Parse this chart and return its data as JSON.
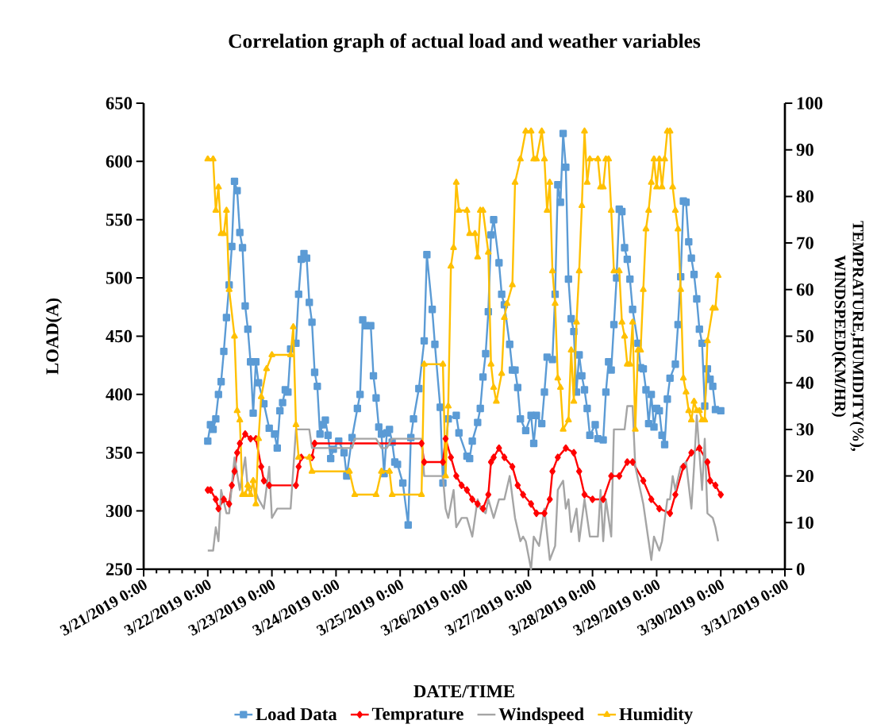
{
  "chart_data": {
    "type": "line",
    "title": "Correlation graph of actual load and weather variables",
    "xlabel": "DATE/TIME",
    "ylabel": "LOAD(A)",
    "y2label": "TEMPRATURE,HUMIDITY(%), WINDSPEED(KM/HR)",
    "legend": "bottom",
    "xlim": [
      "2019-03-21",
      "2019-03-31"
    ],
    "xticks": [
      {
        "value": "2019-03-21",
        "label": "3/21/2019 0:00"
      },
      {
        "value": "2019-03-22",
        "label": "3/22/2019 0:00"
      },
      {
        "value": "2019-03-23",
        "label": "3/23/2019 0:00"
      },
      {
        "value": "2019-03-24",
        "label": "3/24/2019 0:00"
      },
      {
        "value": "2019-03-25",
        "label": "3/25/2019 0:00"
      },
      {
        "value": "2019-03-26",
        "label": "3/26/2019 0:00"
      },
      {
        "value": "2019-03-27",
        "label": "3/27/2019 0:00"
      },
      {
        "value": "2019-03-28",
        "label": "3/28/2019 0:00"
      },
      {
        "value": "2019-03-29",
        "label": "3/29/2019 0:00"
      },
      {
        "value": "2019-03-30",
        "label": "3/30/2019 0:00"
      },
      {
        "value": "2019-03-31",
        "label": "3/31/2019 0:00"
      }
    ],
    "ylim": [
      250,
      650
    ],
    "yticks": [
      250,
      300,
      350,
      400,
      450,
      500,
      550,
      600,
      650
    ],
    "y2lim": [
      0,
      100
    ],
    "y2ticks": [
      0,
      10,
      20,
      30,
      40,
      50,
      60,
      70,
      80,
      90,
      100
    ],
    "series": [
      {
        "name": "Load Data",
        "color": "#5b9bd5",
        "marker": "square",
        "x": [
          "2019-03-22T00:00",
          "2019-03-22T01:00",
          "2019-03-22T02:00",
          "2019-03-22T03:00",
          "2019-03-22T04:00",
          "2019-03-22T05:00",
          "2019-03-22T06:00",
          "2019-03-22T07:00",
          "2019-03-22T08:00",
          "2019-03-22T09:00",
          "2019-03-22T10:00",
          "2019-03-22T11:00",
          "2019-03-22T12:00",
          "2019-03-22T13:00",
          "2019-03-22T14:00",
          "2019-03-22T15:00",
          "2019-03-22T16:00",
          "2019-03-22T17:00",
          "2019-03-22T18:00",
          "2019-03-22T19:00",
          "2019-03-22T21:00",
          "2019-03-22T23:00",
          "2019-03-23T01:00",
          "2019-03-23T02:00",
          "2019-03-23T03:00",
          "2019-03-23T04:00",
          "2019-03-23T05:00",
          "2019-03-23T06:00",
          "2019-03-23T07:00",
          "2019-03-23T09:00",
          "2019-03-23T10:00",
          "2019-03-23T11:00",
          "2019-03-23T12:00",
          "2019-03-23T13:00",
          "2019-03-23T14:00",
          "2019-03-23T15:00",
          "2019-03-23T16:00",
          "2019-03-23T17:00",
          "2019-03-23T18:00",
          "2019-03-23T19:00",
          "2019-03-23T20:00",
          "2019-03-23T21:00",
          "2019-03-23T22:00",
          "2019-03-23T23:00",
          "2019-03-24T01:00",
          "2019-03-24T03:00",
          "2019-03-24T04:00",
          "2019-03-24T06:00",
          "2019-03-24T08:00",
          "2019-03-24T09:00",
          "2019-03-24T10:00",
          "2019-03-24T11:00",
          "2019-03-24T13:00",
          "2019-03-24T14:00",
          "2019-03-24T15:00",
          "2019-03-24T16:00",
          "2019-03-24T17:00",
          "2019-03-24T18:00",
          "2019-03-24T19:00",
          "2019-03-24T20:00",
          "2019-03-24T21:00",
          "2019-03-24T22:00",
          "2019-03-24T23:00",
          "2019-03-25T01:00",
          "2019-03-25T03:00",
          "2019-03-25T04:00",
          "2019-03-25T05:00",
          "2019-03-25T07:00",
          "2019-03-25T09:00",
          "2019-03-25T10:00",
          "2019-03-25T12:00",
          "2019-03-25T13:00",
          "2019-03-25T15:00",
          "2019-03-25T16:00",
          "2019-03-25T18:00",
          "2019-03-25T21:00",
          "2019-03-25T22:00",
          "2019-03-26T01:00",
          "2019-03-26T02:00",
          "2019-03-26T03:00",
          "2019-03-26T05:00",
          "2019-03-26T06:00",
          "2019-03-26T07:00",
          "2019-03-26T08:00",
          "2019-03-26T09:00",
          "2019-03-26T10:00",
          "2019-03-26T11:00",
          "2019-03-26T13:00",
          "2019-03-26T14:00",
          "2019-03-26T15:00",
          "2019-03-26T17:00",
          "2019-03-26T18:00",
          "2019-03-26T19:00",
          "2019-03-26T20:00",
          "2019-03-26T21:00",
          "2019-03-26T23:00",
          "2019-03-27T01:00",
          "2019-03-27T02:00",
          "2019-03-27T03:00",
          "2019-03-27T05:00",
          "2019-03-27T06:00",
          "2019-03-27T07:00",
          "2019-03-27T09:00",
          "2019-03-27T10:00",
          "2019-03-27T11:00",
          "2019-03-27T12:00",
          "2019-03-27T13:00",
          "2019-03-27T14:00",
          "2019-03-27T15:00",
          "2019-03-27T16:00",
          "2019-03-27T17:00",
          "2019-03-27T18:00",
          "2019-03-27T19:00",
          "2019-03-27T20:00",
          "2019-03-27T21:00",
          "2019-03-27T22:00",
          "2019-03-27T23:00",
          "2019-03-28T01:00",
          "2019-03-28T02:00",
          "2019-03-28T04:00",
          "2019-03-28T05:00",
          "2019-03-28T06:00",
          "2019-03-28T07:00",
          "2019-03-28T08:00",
          "2019-03-28T09:00",
          "2019-03-28T10:00",
          "2019-03-28T11:00",
          "2019-03-28T12:00",
          "2019-03-28T13:00",
          "2019-03-28T14:00",
          "2019-03-28T15:00",
          "2019-03-28T17:00",
          "2019-03-28T18:00",
          "2019-03-28T19:00",
          "2019-03-28T20:00",
          "2019-03-28T21:00",
          "2019-03-28T22:00",
          "2019-03-28T23:00",
          "2019-03-29T00:00",
          "2019-03-29T01:00",
          "2019-03-29T02:00",
          "2019-03-29T03:00",
          "2019-03-29T04:00",
          "2019-03-29T05:00",
          "2019-03-29T07:00",
          "2019-03-29T08:00",
          "2019-03-29T09:00",
          "2019-03-29T10:00",
          "2019-03-29T11:00",
          "2019-03-29T12:00",
          "2019-03-29T13:00",
          "2019-03-29T14:00",
          "2019-03-29T15:00",
          "2019-03-29T16:00",
          "2019-03-29T17:00",
          "2019-03-29T18:00",
          "2019-03-29T19:00",
          "2019-03-29T20:00",
          "2019-03-29T21:00",
          "2019-03-29T22:00",
          "2019-03-30T00:00"
        ],
        "values": [
          360,
          374,
          370,
          379,
          400,
          411,
          437,
          466,
          494,
          527,
          583,
          575,
          539,
          526,
          476,
          456,
          428,
          384,
          428,
          410,
          392,
          371,
          366,
          354,
          386,
          393,
          404,
          402,
          439,
          444,
          486,
          516,
          521,
          517,
          479,
          462,
          419,
          407,
          366,
          374,
          378,
          365,
          345,
          353,
          360,
          350,
          330,
          363,
          388,
          400,
          464,
          459,
          459,
          416,
          397,
          372,
          366,
          332,
          367,
          370,
          359,
          342,
          340,
          324,
          288,
          363,
          379,
          405,
          446,
          520,
          473,
          443,
          389,
          324,
          379,
          382,
          367,
          347,
          345,
          360,
          376,
          388,
          415,
          435,
          471,
          537,
          550,
          513,
          486,
          477,
          443,
          421,
          421,
          406,
          379,
          369,
          382,
          358,
          382,
          375,
          402,
          432,
          430,
          486,
          580,
          565,
          624,
          595,
          499,
          465,
          454,
          402,
          434,
          416,
          404,
          388,
          365,
          374,
          362,
          361,
          402,
          428,
          421,
          460,
          500,
          559,
          557,
          526,
          516,
          499,
          473,
          444,
          423,
          422,
          404,
          375,
          400,
          372,
          388,
          386,
          365,
          357,
          396,
          414,
          426,
          460,
          501,
          566,
          565,
          531,
          517,
          503,
          482,
          456,
          444,
          390,
          422,
          413,
          407,
          387,
          386
        ]
      },
      {
        "name": "Temprature",
        "color": "#ff0000",
        "marker": "diamond",
        "axis": "y2",
        "x": [
          "2019-03-22T00:00",
          "2019-03-22T01:00",
          "2019-03-22T03:00",
          "2019-03-22T04:00",
          "2019-03-22T06:00",
          "2019-03-22T08:00",
          "2019-03-22T09:00",
          "2019-03-22T10:00",
          "2019-03-22T11:00",
          "2019-03-22T12:00",
          "2019-03-22T14:00",
          "2019-03-22T16:00",
          "2019-03-22T18:00",
          "2019-03-22T20:00",
          "2019-03-22T21:00",
          "2019-03-22T23:00",
          "2019-03-23T09:00",
          "2019-03-23T10:00",
          "2019-03-23T11:00",
          "2019-03-23T15:00",
          "2019-03-23T16:00",
          "2019-03-25T08:00",
          "2019-03-25T09:00",
          "2019-03-25T16:00",
          "2019-03-25T17:00",
          "2019-03-25T19:00",
          "2019-03-25T21:00",
          "2019-03-25T23:00",
          "2019-03-26T01:00",
          "2019-03-26T03:00",
          "2019-03-26T05:00",
          "2019-03-26T07:00",
          "2019-03-26T09:00",
          "2019-03-26T10:00",
          "2019-03-26T11:00",
          "2019-03-26T13:00",
          "2019-03-26T15:00",
          "2019-03-26T18:00",
          "2019-03-26T20:00",
          "2019-03-26T22:00",
          "2019-03-27T01:00",
          "2019-03-27T03:00",
          "2019-03-27T06:00",
          "2019-03-27T08:00",
          "2019-03-27T09:00",
          "2019-03-27T11:00",
          "2019-03-27T14:00",
          "2019-03-27T17:00",
          "2019-03-27T19:00",
          "2019-03-27T21:00",
          "2019-03-28T00:00",
          "2019-03-28T04:00",
          "2019-03-28T07:00",
          "2019-03-28T10:00",
          "2019-03-28T13:00",
          "2019-03-28T15:00",
          "2019-03-28T19:00",
          "2019-03-28T22:00",
          "2019-03-29T01:00",
          "2019-03-29T05:00",
          "2019-03-29T07:00",
          "2019-03-29T10:00",
          "2019-03-29T13:00",
          "2019-03-29T16:00",
          "2019-03-29T19:00",
          "2019-03-29T20:00",
          "2019-03-29T22:00",
          "2019-03-30T00:00"
        ],
        "values": [
          17,
          17,
          15,
          13,
          15,
          14,
          18,
          21,
          25,
          27,
          29,
          28,
          28,
          22,
          19,
          18,
          18,
          22,
          24,
          24,
          27,
          27,
          23,
          23,
          28,
          24,
          20,
          18,
          17,
          15,
          14,
          13,
          16,
          23,
          24,
          26,
          24,
          22,
          18,
          16,
          14,
          12,
          12,
          15,
          21,
          24,
          26,
          25,
          21,
          16,
          15,
          15,
          20,
          20,
          23,
          23,
          19,
          15,
          13,
          12,
          16,
          22,
          25,
          26,
          23,
          19,
          18,
          16
        ]
      },
      {
        "name": "Windspeed",
        "color": "#a5a5a5",
        "marker": "none",
        "axis": "y2",
        "x": [
          "2019-03-22T00:00",
          "2019-03-22T02:00",
          "2019-03-22T03:00",
          "2019-03-22T04:00",
          "2019-03-22T05:00",
          "2019-03-22T07:00",
          "2019-03-22T08:00",
          "2019-03-22T10:00",
          "2019-03-22T12:00",
          "2019-03-22T14:00",
          "2019-03-22T15:00",
          "2019-03-22T17:00",
          "2019-03-22T19:00",
          "2019-03-22T21:00",
          "2019-03-22T23:00",
          "2019-03-23T00:00",
          "2019-03-23T02:00",
          "2019-03-23T07:00",
          "2019-03-23T09:00",
          "2019-03-23T14:00",
          "2019-03-23T15:00",
          "2019-03-24T06:00",
          "2019-03-24T07:00",
          "2019-03-24T15:00",
          "2019-03-24T17:00",
          "2019-03-24T19:00",
          "2019-03-24T21:00",
          "2019-03-25T08:00",
          "2019-03-25T09:00",
          "2019-03-25T16:00",
          "2019-03-25T17:00",
          "2019-03-25T18:00",
          "2019-03-25T20:00",
          "2019-03-25T21:00",
          "2019-03-25T23:00",
          "2019-03-26T01:00",
          "2019-03-26T03:00",
          "2019-03-26T05:00",
          "2019-03-26T06:00",
          "2019-03-26T08:00",
          "2019-03-26T09:00",
          "2019-03-26T11:00",
          "2019-03-26T13:00",
          "2019-03-26T15:00",
          "2019-03-26T17:00",
          "2019-03-26T19:00",
          "2019-03-26T21:00",
          "2019-03-26T22:00",
          "2019-03-26T23:00",
          "2019-03-27T01:00",
          "2019-03-27T02:00",
          "2019-03-27T04:00",
          "2019-03-27T06:00",
          "2019-03-27T08:00",
          "2019-03-27T10:00",
          "2019-03-27T11:00",
          "2019-03-27T13:00",
          "2019-03-27T14:00",
          "2019-03-27T15:00",
          "2019-03-27T16:00",
          "2019-03-27T18:00",
          "2019-03-27T19:00",
          "2019-03-27T21:00",
          "2019-03-27T23:00",
          "2019-03-28T02:00",
          "2019-03-28T03:00",
          "2019-03-28T04:00",
          "2019-03-28T05:00",
          "2019-03-28T07:00",
          "2019-03-28T08:00",
          "2019-03-28T12:00",
          "2019-03-28T13:00",
          "2019-03-28T15:00",
          "2019-03-28T16:00",
          "2019-03-28T19:00",
          "2019-03-28T21:00",
          "2019-03-28T22:00",
          "2019-03-28T23:00",
          "2019-03-29T01:00",
          "2019-03-29T02:00",
          "2019-03-29T04:00",
          "2019-03-29T05:00",
          "2019-03-29T06:00",
          "2019-03-29T07:00",
          "2019-03-29T09:00",
          "2019-03-29T11:00",
          "2019-03-29T13:00",
          "2019-03-29T14:00",
          "2019-03-29T15:00",
          "2019-03-29T17:00",
          "2019-03-29T18:00",
          "2019-03-29T19:00",
          "2019-03-29T21:00",
          "2019-03-29T22:00",
          "2019-03-29T23:00"
        ],
        "values": [
          4,
          4,
          9,
          6,
          17,
          12,
          12,
          24,
          17,
          24,
          17,
          18,
          15,
          13,
          22,
          11,
          13,
          13,
          30,
          30,
          26,
          26,
          28,
          28,
          26,
          26,
          28,
          28,
          20,
          20,
          13,
          11,
          17,
          9,
          11,
          11,
          7,
          15,
          13,
          12,
          15,
          11,
          15,
          15,
          20,
          11,
          6,
          7,
          6,
          0,
          7,
          5,
          13,
          2,
          5,
          17,
          19,
          13,
          15,
          8,
          13,
          6,
          15,
          7,
          7,
          17,
          6,
          15,
          7,
          30,
          30,
          35,
          35,
          22,
          14,
          6,
          2,
          7,
          4,
          6,
          15,
          15,
          20,
          17,
          22,
          23,
          13,
          22,
          33,
          17,
          28,
          12,
          11,
          9,
          6
        ]
      },
      {
        "name": "Humidity",
        "color": "#ffc000",
        "marker": "triangle",
        "axis": "y2",
        "x": [
          "2019-03-22T00:00",
          "2019-03-22T02:00",
          "2019-03-22T03:00",
          "2019-03-22T04:00",
          "2019-03-22T05:00",
          "2019-03-22T06:00",
          "2019-03-22T07:00",
          "2019-03-22T08:00",
          "2019-03-22T10:00",
          "2019-03-22T11:00",
          "2019-03-22T12:00",
          "2019-03-22T13:00",
          "2019-03-22T14:00",
          "2019-03-22T15:00",
          "2019-03-22T16:00",
          "2019-03-22T17:00",
          "2019-03-22T18:00",
          "2019-03-22T19:00",
          "2019-03-22T20:00",
          "2019-03-22T22:00",
          "2019-03-23T00:00",
          "2019-03-23T07:00",
          "2019-03-23T08:00",
          "2019-03-23T09:00",
          "2019-03-23T10:00",
          "2019-03-23T14:00",
          "2019-03-23T15:00",
          "2019-03-24T05:00",
          "2019-03-24T07:00",
          "2019-03-24T15:00",
          "2019-03-24T17:00",
          "2019-03-24T20:00",
          "2019-03-24T21:00",
          "2019-03-25T08:00",
          "2019-03-25T09:00",
          "2019-03-25T16:00",
          "2019-03-25T17:00",
          "2019-03-25T18:00",
          "2019-03-25T19:00",
          "2019-03-25T20:00",
          "2019-03-25T21:00",
          "2019-03-25T22:00",
          "2019-03-26T01:00",
          "2019-03-26T02:00",
          "2019-03-26T04:00",
          "2019-03-26T05:00",
          "2019-03-26T06:00",
          "2019-03-26T07:00",
          "2019-03-26T09:00",
          "2019-03-26T10:00",
          "2019-03-26T11:00",
          "2019-03-26T12:00",
          "2019-03-26T14:00",
          "2019-03-26T15:00",
          "2019-03-26T16:00",
          "2019-03-26T18:00",
          "2019-03-26T19:00",
          "2019-03-26T21:00",
          "2019-03-26T23:00",
          "2019-03-27T01:00",
          "2019-03-27T02:00",
          "2019-03-27T03:00",
          "2019-03-27T05:00",
          "2019-03-27T06:00",
          "2019-03-27T07:00",
          "2019-03-27T08:00",
          "2019-03-27T09:00",
          "2019-03-27T10:00",
          "2019-03-27T11:00",
          "2019-03-27T12:00",
          "2019-03-27T13:00",
          "2019-03-27T15:00",
          "2019-03-27T16:00",
          "2019-03-27T17:00",
          "2019-03-27T18:00",
          "2019-03-27T19:00",
          "2019-03-27T20:00",
          "2019-03-27T21:00",
          "2019-03-27T22:00",
          "2019-03-27T23:00",
          "2019-03-28T02:00",
          "2019-03-28T03:00",
          "2019-03-28T04:00",
          "2019-03-28T05:00",
          "2019-03-28T06:00",
          "2019-03-28T07:00",
          "2019-03-28T08:00",
          "2019-03-28T10:00",
          "2019-03-28T11:00",
          "2019-03-28T12:00",
          "2019-03-28T13:00",
          "2019-03-28T14:00",
          "2019-03-28T15:00",
          "2019-03-28T16:00",
          "2019-03-28T17:00",
          "2019-03-28T18:00",
          "2019-03-28T19:00",
          "2019-03-28T20:00",
          "2019-03-28T21:00",
          "2019-03-28T22:00",
          "2019-03-28T23:00",
          "2019-03-29T00:00",
          "2019-03-29T01:00",
          "2019-03-29T02:00",
          "2019-03-29T03:00",
          "2019-03-29T04:00",
          "2019-03-29T05:00",
          "2019-03-29T06:00",
          "2019-03-29T07:00",
          "2019-03-29T08:00",
          "2019-03-29T09:00",
          "2019-03-29T10:00",
          "2019-03-29T11:00",
          "2019-03-29T12:00",
          "2019-03-29T13:00",
          "2019-03-29T14:00",
          "2019-03-29T15:00",
          "2019-03-29T16:00",
          "2019-03-29T17:00",
          "2019-03-29T18:00",
          "2019-03-29T19:00",
          "2019-03-29T21:00",
          "2019-03-29T22:00",
          "2019-03-29T23:00"
        ],
        "values": [
          88,
          88,
          77,
          82,
          72,
          72,
          77,
          60,
          50,
          34,
          32,
          16,
          16,
          18,
          16,
          19,
          14,
          28,
          37,
          43,
          46,
          46,
          52,
          31,
          24,
          24,
          21,
          21,
          16,
          16,
          21,
          21,
          16,
          16,
          44,
          44,
          20,
          35,
          65,
          69,
          83,
          77,
          77,
          72,
          72,
          67,
          77,
          77,
          68,
          44,
          39,
          36,
          42,
          54,
          57,
          61,
          83,
          88,
          94,
          94,
          88,
          88,
          94,
          88,
          77,
          83,
          64,
          57,
          41,
          39,
          30,
          32,
          47,
          36,
          53,
          64,
          78,
          94,
          83,
          88,
          88,
          82,
          82,
          88,
          88,
          77,
          64,
          64,
          53,
          50,
          44,
          44,
          53,
          30,
          47,
          47,
          60,
          73,
          77,
          83,
          88,
          82,
          88,
          82,
          88,
          94,
          94,
          82,
          77,
          73,
          60,
          41,
          38,
          34,
          32,
          36,
          34,
          34,
          32,
          32,
          49,
          56,
          56,
          63
        ]
      }
    ]
  }
}
